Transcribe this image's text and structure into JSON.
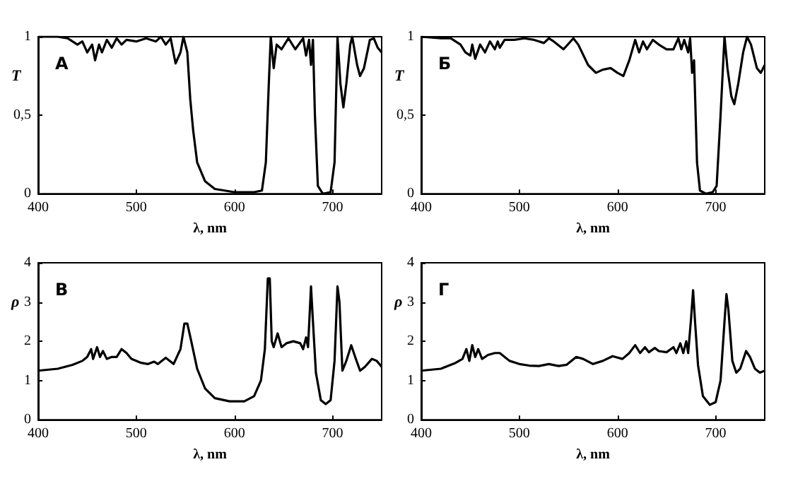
{
  "chart_data": [
    {
      "type": "line",
      "title": "А",
      "xlabel": "λ, nm",
      "ylabel": "T",
      "color": "#000000",
      "marker": "none",
      "xlim": [
        400,
        750
      ],
      "xticks": [
        400,
        500,
        600,
        700
      ],
      "ylim": [
        0,
        1
      ],
      "yticks": [
        0,
        {
          "value": 0.5,
          "label": "0,5"
        },
        1
      ],
      "x": [
        400,
        420,
        430,
        440,
        445,
        450,
        455,
        458,
        462,
        465,
        470,
        475,
        480,
        485,
        490,
        500,
        510,
        520,
        525,
        530,
        535,
        540,
        545,
        548,
        552,
        555,
        558,
        562,
        570,
        580,
        600,
        620,
        628,
        632,
        635,
        637,
        640,
        643,
        648,
        655,
        662,
        670,
        673,
        676,
        678,
        680,
        682,
        685,
        690,
        698,
        702,
        705,
        708,
        711,
        714,
        718,
        720,
        725,
        728,
        732,
        738,
        742,
        746,
        750
      ],
      "values": [
        1.0,
        1.0,
        0.99,
        0.95,
        0.97,
        0.9,
        0.95,
        0.85,
        0.95,
        0.9,
        0.98,
        0.93,
        0.99,
        0.95,
        0.98,
        0.97,
        0.99,
        0.97,
        1.0,
        0.95,
        0.99,
        0.83,
        0.9,
        1.0,
        0.9,
        0.6,
        0.4,
        0.2,
        0.08,
        0.03,
        0.01,
        0.01,
        0.02,
        0.2,
        0.7,
        1.0,
        0.8,
        0.95,
        0.92,
        0.99,
        0.92,
        0.99,
        0.88,
        0.98,
        0.82,
        0.98,
        0.5,
        0.05,
        0.0,
        0.01,
        0.2,
        1.0,
        0.7,
        0.55,
        0.7,
        0.95,
        1.0,
        0.82,
        0.75,
        0.8,
        0.98,
        0.99,
        0.93,
        0.9
      ]
    },
    {
      "type": "line",
      "title": "Б",
      "xlabel": "λ, nm",
      "ylabel": "T",
      "color": "#000000",
      "marker": "none",
      "xlim": [
        400,
        750
      ],
      "xticks": [
        400,
        500,
        600,
        700
      ],
      "ylim": [
        0,
        1
      ],
      "yticks": [
        0,
        {
          "value": 0.5,
          "label": "0,5"
        },
        1
      ],
      "x": [
        400,
        420,
        430,
        440,
        445,
        450,
        452,
        455,
        460,
        465,
        470,
        475,
        478,
        480,
        485,
        495,
        505,
        515,
        525,
        530,
        535,
        545,
        555,
        560,
        570,
        578,
        585,
        593,
        600,
        606,
        612,
        618,
        622,
        626,
        630,
        636,
        642,
        650,
        657,
        662,
        665,
        668,
        672,
        674,
        676,
        678,
        681,
        684,
        690,
        697,
        701,
        705,
        709,
        712,
        716,
        719,
        723,
        728,
        732,
        736,
        742,
        746,
        750
      ],
      "values": [
        1.0,
        0.99,
        0.99,
        0.95,
        0.9,
        0.88,
        0.95,
        0.86,
        0.95,
        0.9,
        0.97,
        0.92,
        0.97,
        0.93,
        0.98,
        0.98,
        0.99,
        0.98,
        0.96,
        0.99,
        0.97,
        0.92,
        0.99,
        0.95,
        0.82,
        0.77,
        0.79,
        0.8,
        0.77,
        0.75,
        0.85,
        0.98,
        0.9,
        0.97,
        0.92,
        0.98,
        0.95,
        0.92,
        0.92,
        0.99,
        0.92,
        0.98,
        0.9,
        0.99,
        0.77,
        0.85,
        0.2,
        0.02,
        0.0,
        0.01,
        0.05,
        0.5,
        1.0,
        0.8,
        0.62,
        0.57,
        0.7,
        0.9,
        1.0,
        0.95,
        0.8,
        0.77,
        0.82
      ]
    },
    {
      "type": "line",
      "title": "В",
      "xlabel": "λ, nm",
      "ylabel": "ρ",
      "color": "#000000",
      "marker": "none",
      "xlim": [
        400,
        750
      ],
      "xticks": [
        400,
        500,
        600,
        700
      ],
      "ylim": [
        0,
        4
      ],
      "yticks": [
        0,
        1,
        2,
        3,
        4
      ],
      "x": [
        400,
        420,
        435,
        445,
        450,
        454,
        456,
        460,
        463,
        466,
        470,
        475,
        480,
        485,
        490,
        495,
        505,
        512,
        518,
        522,
        530,
        538,
        545,
        549,
        552,
        556,
        562,
        570,
        580,
        595,
        610,
        620,
        627,
        631,
        634,
        636,
        638,
        640,
        644,
        648,
        653,
        660,
        667,
        670,
        673,
        675,
        678,
        680,
        683,
        688,
        693,
        698,
        702,
        705,
        707,
        710,
        714,
        719,
        723,
        728,
        733,
        740,
        745,
        750
      ],
      "values": [
        1.25,
        1.3,
        1.4,
        1.5,
        1.6,
        1.8,
        1.55,
        1.85,
        1.6,
        1.75,
        1.55,
        1.6,
        1.6,
        1.8,
        1.7,
        1.55,
        1.45,
        1.42,
        1.48,
        1.42,
        1.58,
        1.42,
        1.8,
        2.45,
        2.45,
        2.0,
        1.3,
        0.8,
        0.55,
        0.47,
        0.47,
        0.6,
        1.0,
        1.8,
        3.6,
        3.6,
        2.0,
        1.85,
        2.2,
        1.85,
        1.95,
        2.0,
        1.95,
        1.8,
        2.1,
        1.85,
        3.4,
        2.5,
        1.2,
        0.5,
        0.4,
        0.5,
        1.5,
        3.4,
        3.0,
        1.25,
        1.5,
        1.9,
        1.6,
        1.25,
        1.35,
        1.55,
        1.5,
        1.35
      ]
    },
    {
      "type": "line",
      "title": "Г",
      "xlabel": "λ, nm",
      "ylabel": "ρ",
      "color": "#000000",
      "marker": "none",
      "xlim": [
        400,
        750
      ],
      "xticks": [
        400,
        500,
        600,
        700
      ],
      "ylim": [
        0,
        4
      ],
      "yticks": [
        0,
        1,
        2,
        3,
        4
      ],
      "x": [
        400,
        420,
        435,
        442,
        446,
        449,
        452,
        455,
        458,
        462,
        468,
        475,
        480,
        490,
        500,
        510,
        520,
        530,
        540,
        548,
        558,
        565,
        575,
        585,
        595,
        605,
        612,
        618,
        623,
        628,
        632,
        638,
        642,
        650,
        657,
        660,
        664,
        667,
        670,
        672,
        675,
        677,
        679,
        682,
        687,
        694,
        700,
        705,
        709,
        711,
        713,
        717,
        721,
        725,
        731,
        735,
        740,
        745,
        750
      ],
      "values": [
        1.25,
        1.3,
        1.45,
        1.55,
        1.8,
        1.5,
        1.9,
        1.6,
        1.8,
        1.55,
        1.65,
        1.7,
        1.7,
        1.5,
        1.42,
        1.38,
        1.37,
        1.42,
        1.37,
        1.4,
        1.6,
        1.55,
        1.42,
        1.5,
        1.62,
        1.55,
        1.7,
        1.9,
        1.7,
        1.85,
        1.72,
        1.83,
        1.75,
        1.72,
        1.85,
        1.7,
        1.95,
        1.7,
        2.0,
        1.7,
        2.6,
        3.3,
        2.5,
        1.4,
        0.6,
        0.38,
        0.45,
        1.0,
        2.5,
        3.2,
        2.8,
        1.5,
        1.2,
        1.3,
        1.75,
        1.6,
        1.3,
        1.2,
        1.25
      ]
    }
  ]
}
